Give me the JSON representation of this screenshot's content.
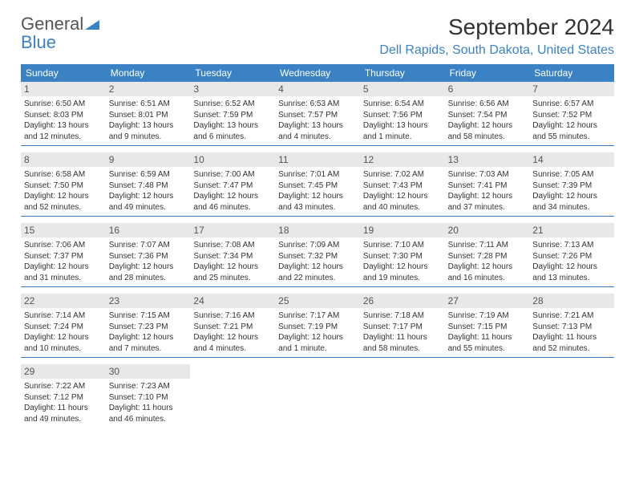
{
  "logo": {
    "text1": "General",
    "text2": "Blue"
  },
  "header": {
    "month_title": "September 2024",
    "location": "Dell Rapids, South Dakota, United States"
  },
  "style": {
    "accent_color": "#3b82c4",
    "daynum_bg": "#e8e8e8",
    "text_color": "#333333",
    "background": "#ffffff",
    "title_fontsize": 28,
    "location_fontsize": 16,
    "weekday_fontsize": 12,
    "daynum_fontsize": 12,
    "info_fontsize": 10
  },
  "weekdays": [
    "Sunday",
    "Monday",
    "Tuesday",
    "Wednesday",
    "Thursday",
    "Friday",
    "Saturday"
  ],
  "days": [
    {
      "n": "1",
      "sunrise": "6:50 AM",
      "sunset": "8:03 PM",
      "daylight": "13 hours and 12 minutes."
    },
    {
      "n": "2",
      "sunrise": "6:51 AM",
      "sunset": "8:01 PM",
      "daylight": "13 hours and 9 minutes."
    },
    {
      "n": "3",
      "sunrise": "6:52 AM",
      "sunset": "7:59 PM",
      "daylight": "13 hours and 6 minutes."
    },
    {
      "n": "4",
      "sunrise": "6:53 AM",
      "sunset": "7:57 PM",
      "daylight": "13 hours and 4 minutes."
    },
    {
      "n": "5",
      "sunrise": "6:54 AM",
      "sunset": "7:56 PM",
      "daylight": "13 hours and 1 minute."
    },
    {
      "n": "6",
      "sunrise": "6:56 AM",
      "sunset": "7:54 PM",
      "daylight": "12 hours and 58 minutes."
    },
    {
      "n": "7",
      "sunrise": "6:57 AM",
      "sunset": "7:52 PM",
      "daylight": "12 hours and 55 minutes."
    },
    {
      "n": "8",
      "sunrise": "6:58 AM",
      "sunset": "7:50 PM",
      "daylight": "12 hours and 52 minutes."
    },
    {
      "n": "9",
      "sunrise": "6:59 AM",
      "sunset": "7:48 PM",
      "daylight": "12 hours and 49 minutes."
    },
    {
      "n": "10",
      "sunrise": "7:00 AM",
      "sunset": "7:47 PM",
      "daylight": "12 hours and 46 minutes."
    },
    {
      "n": "11",
      "sunrise": "7:01 AM",
      "sunset": "7:45 PM",
      "daylight": "12 hours and 43 minutes."
    },
    {
      "n": "12",
      "sunrise": "7:02 AM",
      "sunset": "7:43 PM",
      "daylight": "12 hours and 40 minutes."
    },
    {
      "n": "13",
      "sunrise": "7:03 AM",
      "sunset": "7:41 PM",
      "daylight": "12 hours and 37 minutes."
    },
    {
      "n": "14",
      "sunrise": "7:05 AM",
      "sunset": "7:39 PM",
      "daylight": "12 hours and 34 minutes."
    },
    {
      "n": "15",
      "sunrise": "7:06 AM",
      "sunset": "7:37 PM",
      "daylight": "12 hours and 31 minutes."
    },
    {
      "n": "16",
      "sunrise": "7:07 AM",
      "sunset": "7:36 PM",
      "daylight": "12 hours and 28 minutes."
    },
    {
      "n": "17",
      "sunrise": "7:08 AM",
      "sunset": "7:34 PM",
      "daylight": "12 hours and 25 minutes."
    },
    {
      "n": "18",
      "sunrise": "7:09 AM",
      "sunset": "7:32 PM",
      "daylight": "12 hours and 22 minutes."
    },
    {
      "n": "19",
      "sunrise": "7:10 AM",
      "sunset": "7:30 PM",
      "daylight": "12 hours and 19 minutes."
    },
    {
      "n": "20",
      "sunrise": "7:11 AM",
      "sunset": "7:28 PM",
      "daylight": "12 hours and 16 minutes."
    },
    {
      "n": "21",
      "sunrise": "7:13 AM",
      "sunset": "7:26 PM",
      "daylight": "12 hours and 13 minutes."
    },
    {
      "n": "22",
      "sunrise": "7:14 AM",
      "sunset": "7:24 PM",
      "daylight": "12 hours and 10 minutes."
    },
    {
      "n": "23",
      "sunrise": "7:15 AM",
      "sunset": "7:23 PM",
      "daylight": "12 hours and 7 minutes."
    },
    {
      "n": "24",
      "sunrise": "7:16 AM",
      "sunset": "7:21 PM",
      "daylight": "12 hours and 4 minutes."
    },
    {
      "n": "25",
      "sunrise": "7:17 AM",
      "sunset": "7:19 PM",
      "daylight": "12 hours and 1 minute."
    },
    {
      "n": "26",
      "sunrise": "7:18 AM",
      "sunset": "7:17 PM",
      "daylight": "11 hours and 58 minutes."
    },
    {
      "n": "27",
      "sunrise": "7:19 AM",
      "sunset": "7:15 PM",
      "daylight": "11 hours and 55 minutes."
    },
    {
      "n": "28",
      "sunrise": "7:21 AM",
      "sunset": "7:13 PM",
      "daylight": "11 hours and 52 minutes."
    },
    {
      "n": "29",
      "sunrise": "7:22 AM",
      "sunset": "7:12 PM",
      "daylight": "11 hours and 49 minutes."
    },
    {
      "n": "30",
      "sunrise": "7:23 AM",
      "sunset": "7:10 PM",
      "daylight": "11 hours and 46 minutes."
    }
  ],
  "labels": {
    "sunrise_prefix": "Sunrise: ",
    "sunset_prefix": "Sunset: ",
    "daylight_prefix": "Daylight: "
  }
}
